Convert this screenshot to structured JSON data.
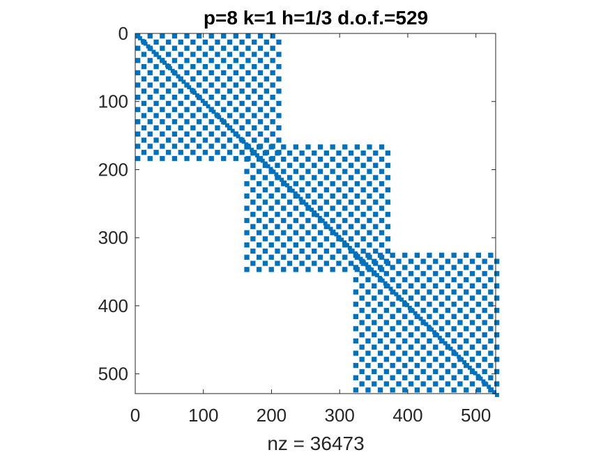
{
  "chart_data": {
    "type": "heatmap",
    "subtype": "sparsity-pattern (spy plot)",
    "title": "p=8 k=1 h=1/3 d.o.f.=529",
    "xlabel": "nz = 36473",
    "ylabel": "",
    "matrix_size": 529,
    "nonzeros": 36473,
    "xlim": [
      0,
      529
    ],
    "ylim": [
      529,
      0
    ],
    "x_ticks": [
      "0",
      "100",
      "200",
      "300",
      "400",
      "500"
    ],
    "y_ticks": [
      "0",
      "100",
      "200",
      "300",
      "400",
      "500"
    ],
    "x_tick_values": [
      0,
      100,
      200,
      300,
      400,
      500
    ],
    "y_tick_values": [
      0,
      100,
      200,
      300,
      400,
      500
    ],
    "blocks": [
      {
        "row_range": [
          0,
          186
        ],
        "col_range": [
          0,
          209
        ]
      },
      {
        "row_range": [
          163,
          349
        ],
        "col_range": [
          160,
          369
        ]
      },
      {
        "row_range": [
          322,
          529
        ],
        "col_range": [
          320,
          529
        ]
      }
    ],
    "marker_color": "#0072BD",
    "grid": false
  }
}
